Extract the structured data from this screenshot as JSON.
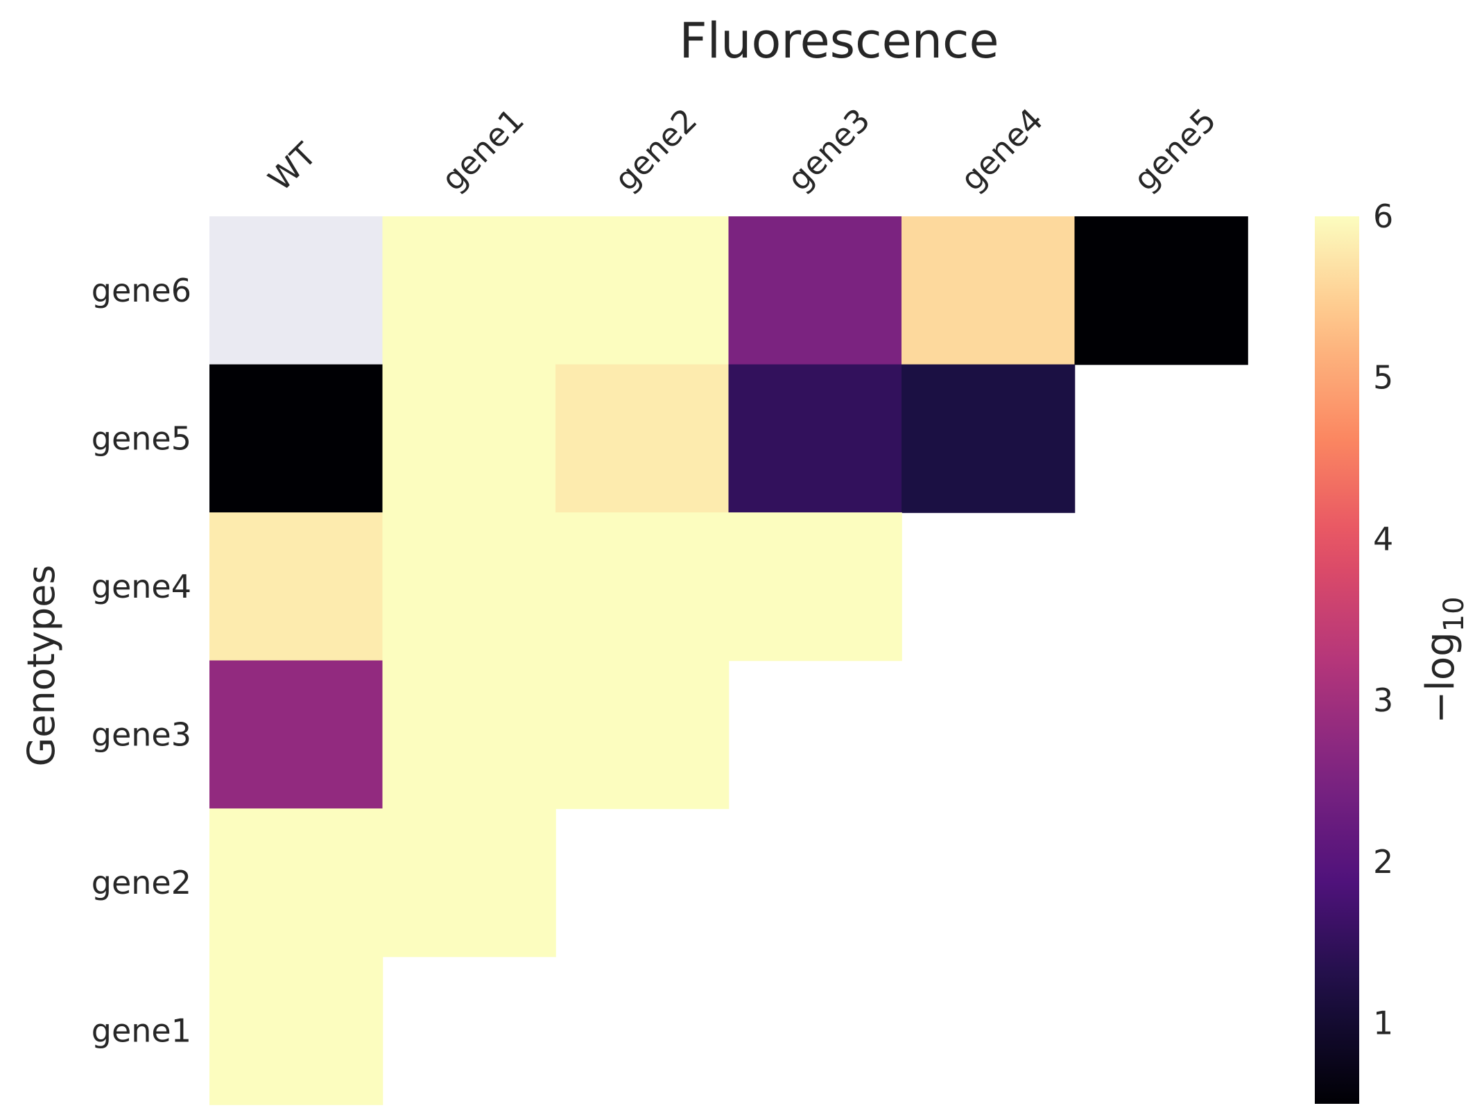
{
  "chart_data": {
    "type": "heatmap",
    "title": "Fluorescence",
    "xlabel": "",
    "ylabel": "Genotypes",
    "x_categories": [
      "WT",
      "gene1",
      "gene2",
      "gene3",
      "gene4",
      "gene5"
    ],
    "y_categories": [
      "gene6",
      "gene5",
      "gene4",
      "gene3",
      "gene2",
      "gene1"
    ],
    "values": [
      [
        null,
        6.0,
        6.0,
        2.5,
        5.6,
        0.5
      ],
      [
        0.5,
        6.0,
        5.8,
        1.5,
        1.2,
        null
      ],
      [
        5.8,
        6.0,
        6.0,
        6.0,
        null,
        null
      ],
      [
        2.8,
        6.0,
        6.0,
        null,
        null,
        null
      ],
      [
        6.0,
        6.0,
        null,
        null,
        null,
        null
      ],
      [
        6.0,
        null,
        null,
        null,
        null,
        null
      ]
    ],
    "missing_cell_color": "#eaeaf2",
    "missing_cells": [
      [
        0,
        0
      ]
    ],
    "colormap": "magma",
    "colorbar": {
      "label_base": "−log",
      "label_subscript": "10",
      "range": [
        0.5,
        6
      ],
      "ticks": [
        1,
        2,
        3,
        4,
        5,
        6
      ]
    },
    "x_tick_position": "top",
    "x_tick_rotation_deg": 45,
    "grid": false
  }
}
